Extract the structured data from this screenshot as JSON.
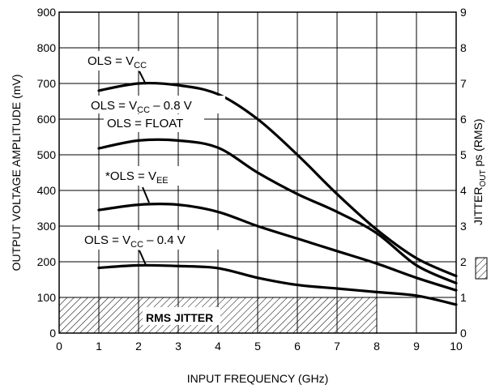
{
  "chart_data": {
    "type": "line",
    "xlabel": "INPUT FREQUENCY (GHz)",
    "ylabel": "OUTPUT VOLTAGE AMPLITUDE (mV)",
    "y2label": "JITTER",
    "y2label_sub": "OUT",
    "y2label_suffix": " ps (RMS)",
    "xlim": [
      0,
      10
    ],
    "ylim": [
      0,
      900
    ],
    "y2lim": [
      0,
      9
    ],
    "grid": true,
    "x_ticks": [
      "0",
      "1",
      "2",
      "3",
      "4",
      "5",
      "6",
      "7",
      "8",
      "9",
      "10"
    ],
    "y_ticks": [
      "0",
      "100",
      "200",
      "300",
      "400",
      "500",
      "600",
      "700",
      "800",
      "900"
    ],
    "y2_ticks": [
      "0",
      "1",
      "2",
      "3",
      "4",
      "5",
      "6",
      "7",
      "8",
      "9"
    ],
    "series": [
      {
        "name": "OLS = VCC",
        "x": [
          1,
          2,
          3,
          4,
          5,
          6,
          7,
          8,
          9,
          10
        ],
        "y": [
          680,
          700,
          695,
          670,
          600,
          500,
          390,
          290,
          210,
          160
        ]
      },
      {
        "name": "OLS = FLOAT",
        "x": [
          1,
          2,
          3,
          4,
          5,
          6,
          7,
          8,
          9,
          10
        ],
        "y": [
          518,
          540,
          540,
          520,
          450,
          390,
          340,
          280,
          190,
          140
        ]
      },
      {
        "name": "*OLS = VEE",
        "x": [
          1,
          2,
          3,
          4,
          5,
          6,
          7,
          8,
          9,
          10
        ],
        "y": [
          345,
          360,
          360,
          340,
          300,
          265,
          230,
          195,
          155,
          120
        ]
      },
      {
        "name": "OLS = VCC - 0.4 V",
        "x": [
          1,
          2,
          3,
          4,
          5,
          6,
          7,
          8,
          9,
          10
        ],
        "y": [
          183,
          190,
          188,
          182,
          155,
          135,
          125,
          115,
          105,
          80
        ]
      }
    ],
    "jitter_band": {
      "label": "RMS JITTER",
      "x_range": [
        0,
        8
      ],
      "jitter_ps": 1
    }
  },
  "annotations": [
    {
      "pre": "OLS = V",
      "sub": "CC",
      "post": ""
    },
    {
      "pre": "OLS = V",
      "sub": "CC",
      "post": " – 0.8 V"
    },
    {
      "pre": "OLS = FLOAT",
      "sub": "",
      "post": ""
    },
    {
      "pre": "*OLS = V",
      "sub": "EE",
      "post": ""
    },
    {
      "pre": "OLS = V",
      "sub": "CC",
      "post": " – 0.4 V"
    }
  ]
}
